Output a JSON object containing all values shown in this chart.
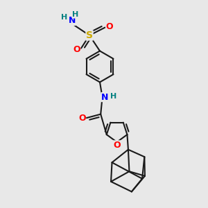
{
  "background_color": "#e8e8e8",
  "bond_color": "#1a1a1a",
  "bond_width": 1.5,
  "atom_colors": {
    "N": "#0000ff",
    "O": "#ff0000",
    "S": "#ccaa00",
    "H": "#008080"
  },
  "font_size": 9,
  "font_size_H": 8,
  "xlim": [
    0,
    10
  ],
  "ylim": [
    0,
    10
  ]
}
